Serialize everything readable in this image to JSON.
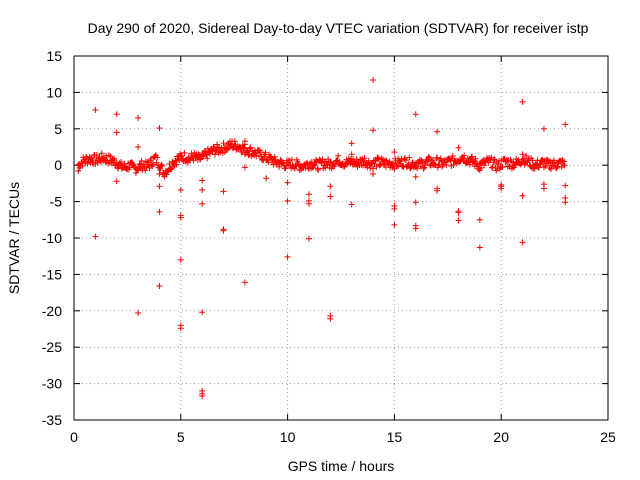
{
  "chart_data": {
    "type": "scatter",
    "title": "Day 290 of 2020, Sidereal Day-to-day VTEC variation (SDTVAR) for receiver istp",
    "xlabel": "GPS time / hours",
    "ylabel": "SDTVAR / TECUs",
    "xlim": [
      0,
      25
    ],
    "ylim": [
      -35,
      15
    ],
    "xticks": [
      0,
      5,
      10,
      15,
      20,
      25
    ],
    "yticks": [
      15,
      10,
      5,
      0,
      -5,
      -10,
      -15,
      -20,
      -25,
      -30,
      -35
    ],
    "grid": true,
    "marker": "plus",
    "color": "#ff0000",
    "main_band": {
      "description": "dense per-epoch points along the baseline",
      "x": [
        0.2,
        0.4,
        0.6,
        0.8,
        1.0,
        1.2,
        1.4,
        1.6,
        1.8,
        2.0,
        2.2,
        2.4,
        2.6,
        2.8,
        3.0,
        3.2,
        3.4,
        3.6,
        3.8,
        4.0,
        4.2,
        4.4,
        4.6,
        4.8,
        5.0,
        5.2,
        5.4,
        5.6,
        5.8,
        6.0,
        6.2,
        6.4,
        6.6,
        6.8,
        7.0,
        7.2,
        7.4,
        7.6,
        7.8,
        8.0,
        8.2,
        8.4,
        8.6,
        8.8,
        9.0,
        9.2,
        9.4,
        9.6,
        9.8,
        10.0,
        10.2,
        10.4,
        10.6,
        10.8,
        11.0,
        11.2,
        11.4,
        11.6,
        11.8,
        12.0,
        12.2,
        12.4,
        12.6,
        12.8,
        13.0,
        13.2,
        13.4,
        13.6,
        13.8,
        14.0,
        14.2,
        14.4,
        14.6,
        14.8,
        15.0,
        15.2,
        15.4,
        15.6,
        15.8,
        16.0,
        16.2,
        16.4,
        16.6,
        16.8,
        17.0,
        17.2,
        17.4,
        17.6,
        17.8,
        18.0,
        18.2,
        18.4,
        18.6,
        18.8,
        19.0,
        19.2,
        19.4,
        19.6,
        19.8,
        20.0,
        20.2,
        20.4,
        20.6,
        20.8,
        21.0,
        21.2,
        21.4,
        21.6,
        21.8,
        22.0,
        22.2,
        22.4,
        22.6,
        22.8,
        23.0
      ],
      "y": [
        0.0,
        0.5,
        0.8,
        0.9,
        0.7,
        0.9,
        1.0,
        0.8,
        0.6,
        0.4,
        -0.2,
        -0.3,
        0.0,
        -0.5,
        -0.3,
        0.0,
        -0.2,
        0.3,
        1.0,
        0.2,
        -1.0,
        -0.5,
        0.3,
        0.8,
        1.0,
        1.2,
        0.9,
        1.2,
        0.8,
        1.0,
        1.5,
        1.8,
        2.1,
        2.2,
        2.4,
        2.6,
        2.8,
        2.7,
        2.5,
        2.3,
        2.0,
        1.8,
        1.5,
        1.3,
        1.0,
        0.8,
        0.5,
        0.3,
        0.2,
        0.0,
        0.2,
        0.1,
        -0.1,
        0.0,
        0.2,
        0.3,
        0.0,
        0.2,
        0.3,
        0.1,
        0.5,
        0.7,
        0.4,
        0.3,
        0.5,
        0.3,
        0.4,
        0.6,
        0.3,
        0.2,
        0.4,
        0.3,
        0.2,
        0.3,
        0.2,
        0.3,
        0.4,
        0.5,
        0.2,
        0.3,
        0.1,
        0.2,
        0.5,
        0.3,
        0.4,
        0.2,
        0.3,
        0.5,
        0.6,
        0.9,
        1.2,
        0.8,
        0.6,
        0.3,
        0.0,
        0.2,
        0.5,
        0.3,
        -0.2,
        0.2,
        0.5,
        0.3,
        0.2,
        0.4,
        0.9,
        0.6,
        0.3,
        0.0,
        0.2,
        0.3,
        0.0,
        0.2,
        0.1,
        0.3,
        0.0
      ]
    },
    "outliers": {
      "description": "hourly outlier points",
      "x": [
        0.2,
        1.0,
        1.0,
        2.0,
        2.0,
        2.0,
        3.0,
        3.0,
        3.0,
        4.0,
        4.0,
        4.0,
        4.0,
        4.0,
        5.0,
        5.0,
        5.0,
        5.0,
        5.0,
        5.0,
        6.0,
        6.0,
        6.0,
        6.0,
        6.0,
        6.0,
        6.0,
        7.0,
        7.0,
        7.0,
        8.0,
        8.0,
        8.0,
        8.0,
        9.0,
        10.0,
        10.0,
        10.0,
        11.0,
        11.0,
        11.0,
        11.0,
        12.0,
        12.0,
        12.0,
        12.0,
        13.0,
        13.0,
        13.0,
        14.0,
        14.0,
        14.0,
        15.0,
        15.0,
        15.0,
        15.0,
        16.0,
        16.0,
        16.0,
        16.0,
        16.0,
        17.0,
        17.0,
        17.0,
        18.0,
        18.0,
        18.0,
        18.0,
        19.0,
        19.0,
        19.0,
        20.0,
        20.0,
        20.0,
        21.0,
        21.0,
        21.0,
        21.0,
        22.0,
        22.0,
        22.0,
        23.0,
        23.0,
        23.0,
        23.0
      ],
      "y": [
        -0.8,
        7.6,
        -9.8,
        7.0,
        4.5,
        -2.2,
        6.5,
        2.5,
        -20.3,
        5.1,
        -1.2,
        -2.9,
        -6.4,
        -16.6,
        -3.4,
        -6.9,
        -7.2,
        -13.0,
        -22.0,
        -22.4,
        -2.1,
        -3.4,
        -5.3,
        -20.2,
        -31.0,
        -31.4,
        -31.7,
        -3.6,
        -8.8,
        -9.0,
        3.3,
        1.5,
        -0.3,
        -16.1,
        -1.8,
        -2.4,
        -4.9,
        -12.6,
        -4.0,
        -4.9,
        -5.3,
        -10.1,
        -2.9,
        -4.3,
        -20.7,
        -21.1,
        3.0,
        1.5,
        -5.4,
        11.7,
        4.8,
        -1.2,
        1.8,
        -5.6,
        -6.0,
        -8.2,
        7.0,
        -1.6,
        -5.1,
        -8.3,
        -8.7,
        4.6,
        -3.2,
        -3.5,
        2.4,
        -6.3,
        -6.5,
        -7.6,
        -0.7,
        -7.5,
        -11.3,
        -2.7,
        -2.9,
        -3.2,
        8.7,
        1.5,
        -4.2,
        -10.6,
        5.0,
        -2.6,
        -3.2,
        5.6,
        -2.8,
        -4.5,
        -5.1
      ]
    }
  }
}
